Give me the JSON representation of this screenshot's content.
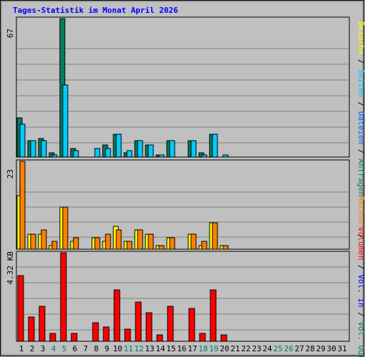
{
  "chart_data": {
    "type": "bar",
    "title": "Tages-Statistik im Monat April 2026",
    "days": [
      "1",
      "2",
      "3",
      "4",
      "5",
      "6",
      "7",
      "8",
      "9",
      "10",
      "11",
      "12",
      "13",
      "14",
      "15",
      "16",
      "17",
      "18",
      "19",
      "20",
      "21",
      "22",
      "23",
      "24",
      "25",
      "26",
      "27",
      "28",
      "29",
      "30",
      "31"
    ],
    "weekend_days": [
      "4",
      "5",
      "11",
      "12",
      "18",
      "19",
      "25",
      "26"
    ],
    "colors": {
      "anfragen": "#008060",
      "dateien": "#00c0ff",
      "seiten": "#00e0ff",
      "besuche": "#ffff00",
      "rechner": "#ff8000",
      "volumen": "#ff0000",
      "weekday_label": "#000000",
      "weekend_label": "#008060",
      "title": "#0000ff"
    },
    "panels": [
      {
        "id": "top",
        "ytick_label": "67",
        "ymax": 67,
        "series": [
          {
            "key": "anfragen",
            "color": "#008060",
            "values": [
              19,
              8,
              9,
              2,
              67,
              4,
              0,
              0,
              6,
              11,
              2,
              8,
              6,
              1,
              8,
              0,
              8,
              2,
              11,
              0,
              0,
              0,
              0,
              0,
              0,
              0,
              0,
              0,
              0,
              0,
              0
            ]
          },
          {
            "key": "dateien",
            "color": "#00ccff",
            "values": [
              16,
              8,
              8,
              1,
              35,
              3,
              0,
              4,
              4,
              11,
              3,
              8,
              6,
              1,
              8,
              0,
              8,
              1,
              11,
              1,
              0,
              0,
              0,
              0,
              0,
              0,
              0,
              0,
              0,
              0,
              0
            ]
          }
        ]
      },
      {
        "id": "middle",
        "ytick_label": "23",
        "ymax": 23,
        "series": [
          {
            "key": "besuche",
            "color": "#ffff00",
            "values": [
              14,
              4,
              4,
              1,
              11,
              2,
              0,
              3,
              2,
              6,
              2,
              5,
              4,
              1,
              3,
              0,
              4,
              1,
              7,
              1,
              0,
              0,
              0,
              0,
              0,
              0,
              0,
              0,
              0,
              0,
              0
            ]
          },
          {
            "key": "rechner",
            "color": "#ff8000",
            "values": [
              23,
              4,
              5,
              2,
              11,
              3,
              0,
              3,
              4,
              5,
              2,
              5,
              4,
              1,
              3,
              0,
              4,
              2,
              7,
              1,
              0,
              0,
              0,
              0,
              0,
              0,
              0,
              0,
              0,
              0,
              0
            ]
          }
        ]
      },
      {
        "id": "bottom",
        "ytick_label": "4.32 KB",
        "ymax": 4.32,
        "series": [
          {
            "key": "volumen",
            "color": "#ff0000",
            "values": [
              3.2,
              1.2,
              1.7,
              0.4,
              4.32,
              0.4,
              0,
              0.9,
              0.7,
              2.5,
              0.6,
              1.9,
              1.4,
              0.3,
              1.7,
              0,
              1.6,
              0.4,
              2.5,
              0.3,
              0,
              0,
              0,
              0,
              0,
              0,
              0,
              0,
              0,
              0,
              0
            ]
          }
        ]
      }
    ],
    "side_labels": {
      "top": [
        {
          "text": "Anfragen",
          "color": "#008060"
        },
        {
          "text": " / ",
          "color": "#000000"
        },
        {
          "text": "Dateien",
          "color": "#0060ff"
        },
        {
          "text": " / ",
          "color": "#000000"
        },
        {
          "text": "Seiten",
          "color": "#00c0ff"
        },
        {
          "text": " / ",
          "color": "#000000"
        },
        {
          "text": "Besuche",
          "color": "#ffff00"
        }
      ],
      "mid": [
        {
          "text": " / ",
          "color": "#000000"
        },
        {
          "text": "Rechner",
          "color": "#ff8000"
        }
      ],
      "bottom": [
        {
          "text": " / ",
          "color": "#000000"
        },
        {
          "text": "Vol. Out",
          "color": "#008060"
        },
        {
          "text": " / ",
          "color": "#000000"
        },
        {
          "text": "Vol. In",
          "color": "#0000ff"
        },
        {
          "text": " / ",
          "color": "#000000"
        },
        {
          "text": "Volumen",
          "color": "#ff0000"
        }
      ]
    }
  }
}
